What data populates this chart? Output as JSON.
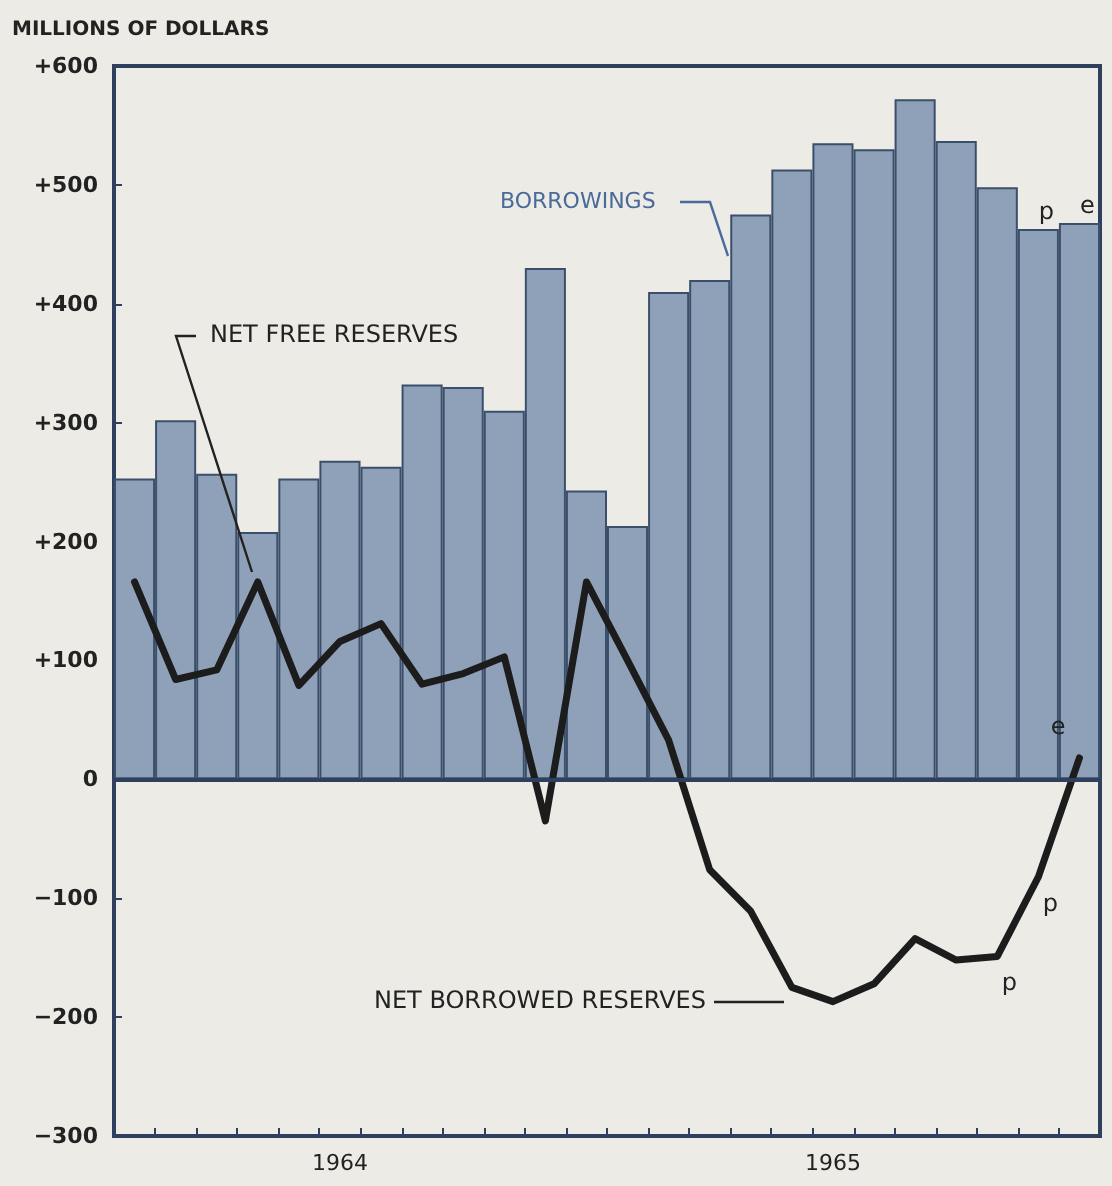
{
  "chart_data": {
    "type": "bar",
    "ylabel": "MILLIONS OF DOLLARS",
    "categories": [
      null,
      null,
      null,
      null,
      null,
      "1964",
      null,
      null,
      null,
      null,
      null,
      null,
      null,
      null,
      null,
      null,
      null,
      "1965",
      null,
      null,
      null,
      null,
      null,
      null
    ],
    "series": [
      {
        "name": "BORROWINGS",
        "color": "#8fa1b9",
        "values": [
          253,
          302,
          257,
          208,
          253,
          268,
          263,
          332,
          330,
          310,
          430,
          243,
          213,
          410,
          420,
          475,
          513,
          535,
          530,
          572,
          537,
          498,
          463,
          468
        ],
        "value_labels": [
          null,
          null,
          null,
          null,
          null,
          null,
          null,
          null,
          null,
          null,
          null,
          null,
          null,
          null,
          null,
          null,
          null,
          null,
          null,
          null,
          null,
          null,
          "p",
          "e"
        ]
      },
      {
        "type": "line",
        "color": "#1c1c1c",
        "values": [
          166,
          84,
          92,
          166,
          79,
          116,
          131,
          80,
          89,
          103,
          -35,
          166,
          100,
          33,
          -76,
          -111,
          -175,
          -187,
          -172,
          -134,
          -152,
          -149,
          -82,
          18
        ],
        "value_labels": [
          null,
          null,
          null,
          null,
          null,
          null,
          null,
          null,
          null,
          null,
          null,
          null,
          null,
          null,
          null,
          null,
          null,
          null,
          null,
          null,
          null,
          "p",
          "p",
          "e"
        ]
      }
    ],
    "ylim": [
      -300,
      600
    ],
    "yticks": [
      {
        "value": 600,
        "label": "+600"
      },
      {
        "value": 500,
        "label": "+500"
      },
      {
        "value": 400,
        "label": "+400"
      },
      {
        "value": 300,
        "label": "+300"
      },
      {
        "value": 200,
        "label": "+200"
      },
      {
        "value": 100,
        "label": "+100"
      },
      0,
      {
        "value": -100,
        "label": "−100"
      },
      {
        "value": -200,
        "label": "−200"
      },
      {
        "value": -300,
        "label": "−300"
      }
    ],
    "marker": "none",
    "line_style": "solid",
    "grid": false,
    "annotations": [
      "NET FREE RESERVES",
      "NET BORROWED RESERVES"
    ]
  }
}
